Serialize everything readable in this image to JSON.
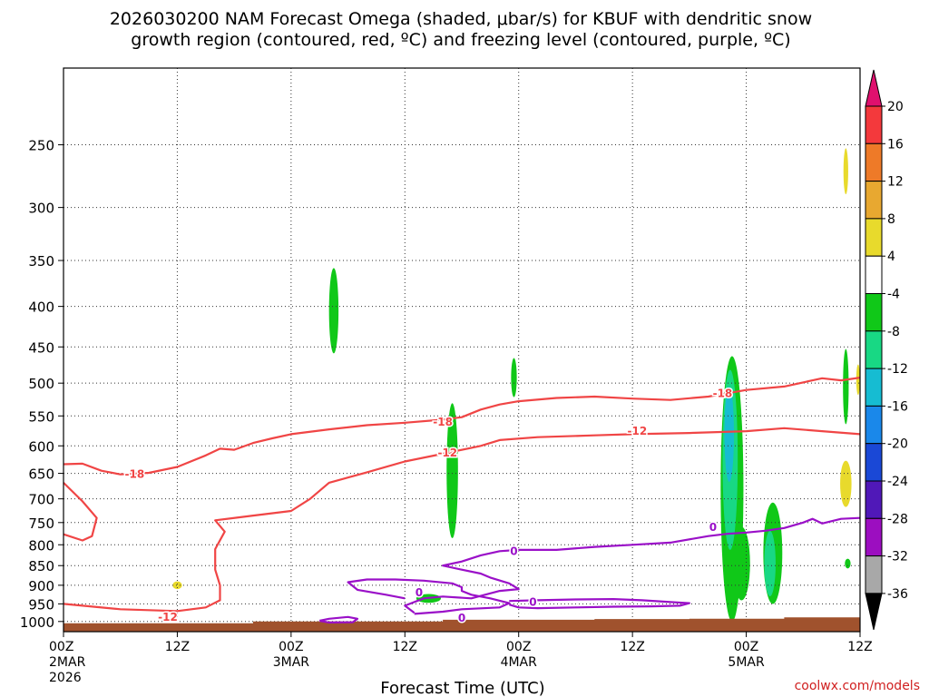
{
  "chart_data": {
    "type": "heatmap",
    "title_line1": "2026030200 NAM Forecast Omega (shaded, μbar/s) for KBUF with dendritic snow",
    "title_line2": "growth region (contoured, red, ºC) and freezing level (contoured, purple, ºC)",
    "xlabel": "Forecast Time (UTC)",
    "credit": "coolwx.com/models",
    "x_ticks": [
      {
        "line1": "00Z",
        "line2": "2MAR",
        "line3": "2026"
      },
      {
        "line1": "12Z",
        "line2": "",
        "line3": ""
      },
      {
        "line1": "00Z",
        "line2": "3MAR",
        "line3": ""
      },
      {
        "line1": "12Z",
        "line2": "",
        "line3": ""
      },
      {
        "line1": "00Z",
        "line2": "4MAR",
        "line3": ""
      },
      {
        "line1": "12Z",
        "line2": "",
        "line3": ""
      },
      {
        "line1": "00Z",
        "line2": "5MAR",
        "line3": ""
      },
      {
        "line1": "12Z",
        "line2": "",
        "line3": ""
      }
    ],
    "x_range_hours": [
      0,
      84
    ],
    "y_ticks": [
      250,
      300,
      350,
      400,
      450,
      500,
      550,
      600,
      650,
      700,
      750,
      800,
      850,
      900,
      950,
      1000
    ],
    "y_range_hpa": [
      200,
      1030
    ],
    "y_scale": "log",
    "grid": true,
    "colorbar": {
      "labels": [
        "20",
        "16",
        "12",
        "8",
        "4",
        "-4",
        "-8",
        "-12",
        "-16",
        "-20",
        "-24",
        "-28",
        "-32",
        "-36"
      ],
      "colors": [
        "#e0106e",
        "#f4393c",
        "#ee7a28",
        "#e8a830",
        "#e8da2c",
        "#ffffff",
        "#10c818",
        "#18d884",
        "#16bcd2",
        "#1a88ea",
        "#1a48d6",
        "#5018b8",
        "#9c0ec0",
        "#a8a8a8",
        "#000000"
      ]
    },
    "contour_colors": {
      "dgz": "#f04545",
      "freezing": "#9a10c8",
      "ground": "#a0522d"
    },
    "contour_labels": [
      {
        "text": "-18",
        "hour": 7.5,
        "p": 652
      },
      {
        "text": "-12",
        "hour": 11,
        "p": 988
      },
      {
        "text": "-18",
        "hour": 40,
        "p": 560
      },
      {
        "text": "-12",
        "hour": 40.5,
        "p": 612
      },
      {
        "text": "-18",
        "hour": 69.5,
        "p": 515
      },
      {
        "text": "-12",
        "hour": 60.5,
        "p": 575
      },
      {
        "text": "0",
        "hour": 37.5,
        "p": 920
      },
      {
        "text": "0",
        "hour": 47.5,
        "p": 815
      },
      {
        "text": "0",
        "hour": 49.5,
        "p": 945
      },
      {
        "text": "0",
        "hour": 42,
        "p": 990
      },
      {
        "text": "0",
        "hour": 68.5,
        "p": 760
      }
    ],
    "contours": [
      {
        "type": "dgz",
        "points": [
          [
            0,
            633
          ],
          [
            2,
            632
          ],
          [
            4,
            645
          ],
          [
            6,
            652
          ],
          [
            9,
            649
          ],
          [
            12,
            638
          ],
          [
            15,
            617
          ],
          [
            16.5,
            605
          ],
          [
            18,
            607
          ],
          [
            20,
            595
          ],
          [
            22,
            587
          ],
          [
            24,
            580
          ],
          [
            28,
            572
          ],
          [
            32,
            565
          ],
          [
            36,
            561
          ],
          [
            40,
            556
          ],
          [
            42,
            552
          ],
          [
            44,
            540
          ],
          [
            46,
            532
          ],
          [
            48,
            527
          ],
          [
            52,
            522
          ],
          [
            56,
            520
          ],
          [
            60,
            523
          ],
          [
            64,
            525
          ],
          [
            68,
            520
          ],
          [
            72,
            510
          ],
          [
            76,
            505
          ],
          [
            80,
            493
          ],
          [
            82,
            496
          ],
          [
            84,
            492
          ]
        ]
      },
      {
        "type": "dgz",
        "points": [
          [
            0,
            668
          ],
          [
            2,
            705
          ],
          [
            3.5,
            740
          ],
          [
            3,
            780
          ],
          [
            2,
            790
          ],
          [
            0,
            776
          ]
        ]
      },
      {
        "type": "dgz",
        "points": [
          [
            0,
            950
          ],
          [
            6,
            965
          ],
          [
            12,
            970
          ],
          [
            15,
            960
          ],
          [
            16.5,
            940
          ],
          [
            16.5,
            900
          ],
          [
            16,
            860
          ],
          [
            16,
            810
          ],
          [
            17,
            770
          ],
          [
            16,
            745
          ],
          [
            20,
            735
          ],
          [
            24,
            725
          ],
          [
            26,
            700
          ],
          [
            28,
            668
          ],
          [
            32,
            648
          ],
          [
            36,
            628
          ],
          [
            40,
            614
          ],
          [
            44,
            600
          ],
          [
            46,
            590
          ],
          [
            50,
            585
          ],
          [
            56,
            582
          ],
          [
            60,
            580
          ],
          [
            66,
            578
          ],
          [
            72,
            575
          ],
          [
            76,
            570
          ],
          [
            80,
            575
          ],
          [
            84,
            580
          ]
        ]
      },
      {
        "type": "freezing",
        "points": [
          [
            37,
            975
          ],
          [
            36,
            955
          ],
          [
            38,
            935
          ],
          [
            40,
            930
          ],
          [
            43,
            935
          ],
          [
            46,
            915
          ],
          [
            48,
            910
          ],
          [
            47,
            895
          ],
          [
            45,
            880
          ],
          [
            44,
            870
          ],
          [
            42,
            860
          ],
          [
            40,
            850
          ],
          [
            42,
            840
          ],
          [
            44,
            825
          ],
          [
            46,
            815
          ],
          [
            48,
            812
          ],
          [
            52,
            812
          ],
          [
            56,
            805
          ],
          [
            60,
            800
          ],
          [
            64,
            795
          ],
          [
            68,
            780
          ],
          [
            70,
            775
          ],
          [
            72,
            772
          ],
          [
            74,
            768
          ],
          [
            76,
            762
          ],
          [
            78,
            750
          ],
          [
            79,
            742
          ],
          [
            80,
            752
          ],
          [
            82,
            742
          ],
          [
            84,
            740
          ]
        ]
      },
      {
        "type": "freezing",
        "points": [
          [
            27,
            998
          ],
          [
            28,
            992
          ],
          [
            30,
            987
          ],
          [
            31,
            992
          ],
          [
            30.5,
            1002
          ],
          [
            28,
            1003
          ],
          [
            27,
            998
          ]
        ]
      },
      {
        "type": "freezing",
        "points": [
          [
            37,
            978
          ],
          [
            40,
            972
          ],
          [
            42,
            965
          ],
          [
            46,
            960
          ],
          [
            47,
            948
          ],
          [
            45,
            935
          ],
          [
            43,
            925
          ],
          [
            42,
            915
          ],
          [
            42,
            905
          ],
          [
            41,
            895
          ],
          [
            38,
            888
          ],
          [
            35,
            885
          ],
          [
            32,
            885
          ],
          [
            30,
            892
          ],
          [
            31,
            912
          ],
          [
            34,
            925
          ],
          [
            36,
            935
          ]
        ]
      },
      {
        "type": "freezing",
        "points": [
          [
            47,
            942
          ],
          [
            50,
            940
          ],
          [
            54,
            938
          ],
          [
            58,
            937
          ],
          [
            61,
            940
          ],
          [
            64,
            945
          ],
          [
            66,
            948
          ],
          [
            65,
            955
          ],
          [
            62,
            957
          ],
          [
            58,
            958
          ],
          [
            54,
            960
          ],
          [
            50,
            962
          ],
          [
            48,
            960
          ],
          [
            47,
            952
          ]
        ]
      }
    ],
    "omega_blobs": [
      {
        "hour": 12,
        "p": 900,
        "rh": 0.5,
        "rp": 10,
        "color": "#e8da2c"
      },
      {
        "hour": 28.5,
        "p": 405,
        "rh": 0.5,
        "rp": 50,
        "color": "#10c818"
      },
      {
        "hour": 41,
        "p": 645,
        "rh": 0.6,
        "rp": 125,
        "color": "#10c818"
      },
      {
        "hour": 38.5,
        "p": 935,
        "rh": 1.3,
        "rp": 12,
        "color": "#10c818"
      },
      {
        "hour": 47.5,
        "p": 492,
        "rh": 0.3,
        "rp": 28,
        "color": "#10c818"
      },
      {
        "hour": 70.5,
        "p": 680,
        "rh": 1.2,
        "rp": 250,
        "color": "#10c818"
      },
      {
        "hour": 70.3,
        "p": 625,
        "rh": 0.8,
        "rp": 160,
        "color": "#18d884"
      },
      {
        "hour": 70.2,
        "p": 580,
        "rh": 0.5,
        "rp": 80,
        "color": "#16bcd2"
      },
      {
        "hour": 71.5,
        "p": 845,
        "rh": 0.9,
        "rp": 90,
        "color": "#10c818"
      },
      {
        "hour": 74.8,
        "p": 820,
        "rh": 1.0,
        "rp": 120,
        "color": "#10c818"
      },
      {
        "hour": 74.5,
        "p": 845,
        "rh": 0.6,
        "rp": 80,
        "color": "#18d884"
      },
      {
        "hour": 82.5,
        "p": 505,
        "rh": 0.3,
        "rp": 55,
        "color": "#10c818"
      },
      {
        "hour": 82.7,
        "p": 845,
        "rh": 0.3,
        "rp": 12,
        "color": "#10c818"
      },
      {
        "hour": 83.8,
        "p": 495,
        "rh": 0.2,
        "rp": 22,
        "color": "#e8da2c"
      },
      {
        "hour": 82.5,
        "p": 270,
        "rh": 0.25,
        "rp": 18,
        "color": "#e8da2c"
      },
      {
        "hour": 82.5,
        "p": 670,
        "rh": 0.6,
        "rp": 45,
        "color": "#e8da2c"
      }
    ],
    "surface": [
      [
        0,
        1005
      ],
      [
        20,
        1005
      ],
      [
        20,
        1000
      ],
      [
        40,
        1000
      ],
      [
        40,
        995
      ],
      [
        56,
        995
      ],
      [
        56,
        993
      ],
      [
        66,
        993
      ],
      [
        66,
        992
      ],
      [
        76,
        992
      ],
      [
        76,
        988
      ],
      [
        84,
        988
      ]
    ]
  }
}
